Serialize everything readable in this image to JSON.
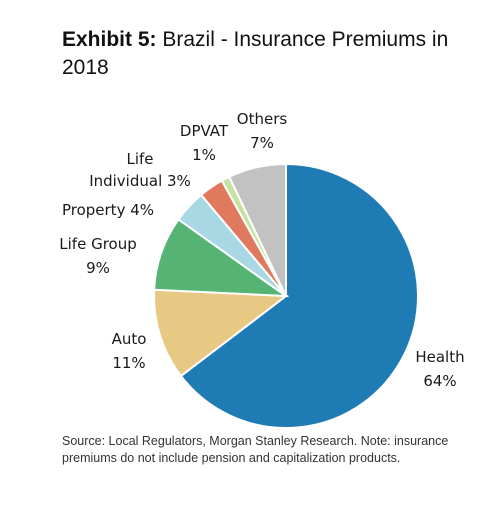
{
  "title_lead": "Exhibit 5:",
  "title_rest": "Brazil - Insurance Premiums in 2018",
  "source_note": "Source: Local Regulators, Morgan Stanley Research. Note: insurance premiums do not include pension and capitalization products.",
  "chart_data": {
    "type": "pie",
    "title": "Brazil - Insurance Premiums in 2018",
    "start": "12 o'clock",
    "direction": "clockwise",
    "slices": [
      {
        "name": "Health",
        "value": 64,
        "label": "64%",
        "color": "#1f7bb4"
      },
      {
        "name": "Auto",
        "value": 11,
        "label": "11%",
        "color": "#e8c983"
      },
      {
        "name": "Life Group",
        "value": 9,
        "label": "9%",
        "color": "#55b374"
      },
      {
        "name": "Property",
        "value": 4,
        "label": "4%",
        "color": "#a7d8e3"
      },
      {
        "name": "Life Individual",
        "value": 3,
        "label": "3%",
        "color": "#e07a5f"
      },
      {
        "name": "DPVAT",
        "value": 1,
        "label": "1%",
        "color": "#c4e3a0"
      },
      {
        "name": "Others",
        "value": 7,
        "label": "7%",
        "color": "#c2c2c2"
      }
    ]
  }
}
